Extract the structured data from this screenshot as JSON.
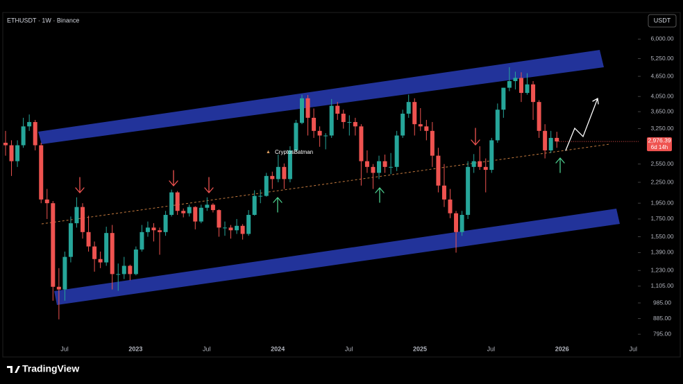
{
  "chart_data": {
    "type": "candlestick",
    "title": "ETHUSDT · 1W · Binance",
    "currency": "USDT",
    "watermark": "CryptosBatman",
    "brand": "TradingView",
    "log_scale": true,
    "up_color": "#26a69a",
    "down_color": "#ef5350",
    "ylim": [
      690,
      7200
    ],
    "yticks": [
      {
        "value": 6000,
        "label": "6,000.00"
      },
      {
        "value": 5250,
        "label": "5,250.00"
      },
      {
        "value": 4650,
        "label": "4,650.00"
      },
      {
        "value": 4050,
        "label": "4,050.00"
      },
      {
        "value": 3650,
        "label": "3,650.00"
      },
      {
        "value": 3250,
        "label": "3,250.00"
      },
      {
        "value": 2550,
        "label": "2,550.00"
      },
      {
        "value": 2250,
        "label": "2,250.00"
      },
      {
        "value": 1950,
        "label": "1,950.00"
      },
      {
        "value": 1750,
        "label": "1,750.00"
      },
      {
        "value": 1550,
        "label": "1,550.00"
      },
      {
        "value": 1390,
        "label": "1,390.00"
      },
      {
        "value": 1230,
        "label": "1,230.00"
      },
      {
        "value": 1105,
        "label": "1,105.00"
      },
      {
        "value": 985,
        "label": "985.00"
      },
      {
        "value": 885,
        "label": "885.00"
      },
      {
        "value": 795,
        "label": "795.00"
      }
    ],
    "x_labels": [
      "Jul",
      "2023",
      "Jul",
      "2024",
      "Jul",
      "2025",
      "Jul",
      "2026",
      "Jul"
    ],
    "last_price_label": "2,976.39",
    "countdown": "6d 14h",
    "candles": {
      "open": [
        2950,
        2900,
        2600,
        2900,
        3300,
        3400,
        2900,
        2000,
        1950,
        1100,
        1080,
        1350,
        1700,
        1900,
        1600,
        1450,
        1330,
        1300,
        1590,
        1200,
        1200,
        1270,
        1200,
        1420,
        1600,
        1650,
        1620,
        1600,
        1800,
        2100,
        1850,
        1820,
        1900,
        1720,
        1890,
        1930,
        1860,
        1650,
        1650,
        1620,
        1670,
        1580,
        1800,
        2050,
        2050,
        2350,
        2300,
        2500,
        2300,
        2800,
        3380,
        4000,
        3500,
        3200,
        3100,
        3100,
        3800,
        3600,
        3400,
        3400,
        3300,
        2600,
        2500,
        2400,
        2600,
        2500,
        2500,
        3100,
        3600,
        3900,
        3350,
        3300,
        3200,
        2700,
        2200,
        2000,
        1820,
        1600,
        1800,
        2500,
        2600,
        2500,
        2450,
        3000,
        3700,
        4300,
        4500,
        4600,
        4150,
        4400,
        3900,
        3200,
        2800,
        3050
      ],
      "high": [
        3200,
        3000,
        3000,
        3500,
        3580,
        3450,
        2950,
        2150,
        1980,
        1250,
        1400,
        1780,
        2030,
        1950,
        1790,
        1500,
        1400,
        1660,
        1680,
        1290,
        1350,
        1280,
        1450,
        1680,
        1720,
        1700,
        1650,
        1850,
        2140,
        2120,
        1880,
        1930,
        1910,
        1930,
        2030,
        1950,
        1870,
        1720,
        1680,
        1750,
        1690,
        1860,
        2130,
        2140,
        2400,
        2420,
        2720,
        2560,
        2880,
        3450,
        4100,
        4090,
        3730,
        3300,
        3150,
        3980,
        3900,
        3700,
        3560,
        3500,
        3350,
        2800,
        2550,
        2700,
        2720,
        2750,
        3200,
        3700,
        4100,
        4000,
        3740,
        3450,
        3400,
        2850,
        2550,
        2150,
        1850,
        1850,
        2600,
        2730,
        2880,
        2650,
        3050,
        3860,
        4300,
        4950,
        4800,
        4780,
        4750,
        4500,
        3950,
        3350,
        3200,
        3180
      ],
      "low": [
        2700,
        2350,
        2500,
        2850,
        3200,
        2800,
        1950,
        1750,
        1000,
        880,
        1000,
        1300,
        1650,
        1530,
        1400,
        1220,
        1250,
        1270,
        1080,
        1070,
        1160,
        1150,
        1190,
        1400,
        1550,
        1500,
        1370,
        1560,
        1780,
        1800,
        1770,
        1780,
        1630,
        1700,
        1850,
        1830,
        1550,
        1560,
        1530,
        1580,
        1520,
        1560,
        1790,
        1950,
        2040,
        2150,
        2250,
        2150,
        2250,
        2780,
        3350,
        3100,
        3050,
        2870,
        2820,
        3050,
        3450,
        3250,
        3100,
        3100,
        2200,
        2400,
        2150,
        2300,
        2400,
        2380,
        2430,
        3050,
        3500,
        3100,
        3200,
        3000,
        2500,
        2100,
        1900,
        1760,
        1390,
        1560,
        1750,
        2400,
        2450,
        2100,
        2400,
        2950,
        3500,
        4200,
        4250,
        3900,
        4100,
        3450,
        3050,
        2650,
        2750,
        2850
      ],
      "close": [
        2900,
        2600,
        2900,
        3300,
        3400,
        2900,
        2000,
        1950,
        1100,
        1080,
        1350,
        1700,
        1900,
        1600,
        1450,
        1330,
        1300,
        1590,
        1200,
        1200,
        1270,
        1200,
        1420,
        1600,
        1650,
        1620,
        1600,
        1800,
        2100,
        1850,
        1820,
        1900,
        1720,
        1890,
        1930,
        1860,
        1650,
        1650,
        1620,
        1670,
        1580,
        1800,
        2050,
        2050,
        2350,
        2300,
        2500,
        2300,
        2800,
        3380,
        4000,
        3500,
        3200,
        3100,
        3100,
        3800,
        3600,
        3400,
        3400,
        3300,
        2600,
        2500,
        2400,
        2600,
        2500,
        2500,
        3100,
        3600,
        3900,
        3350,
        3300,
        3200,
        2700,
        2200,
        2000,
        1820,
        1600,
        1800,
        2500,
        2600,
        2500,
        2450,
        3000,
        3700,
        4300,
        4500,
        4600,
        4150,
        4400,
        3900,
        3200,
        2800,
        3050,
        2976.39
      ]
    }
  }
}
